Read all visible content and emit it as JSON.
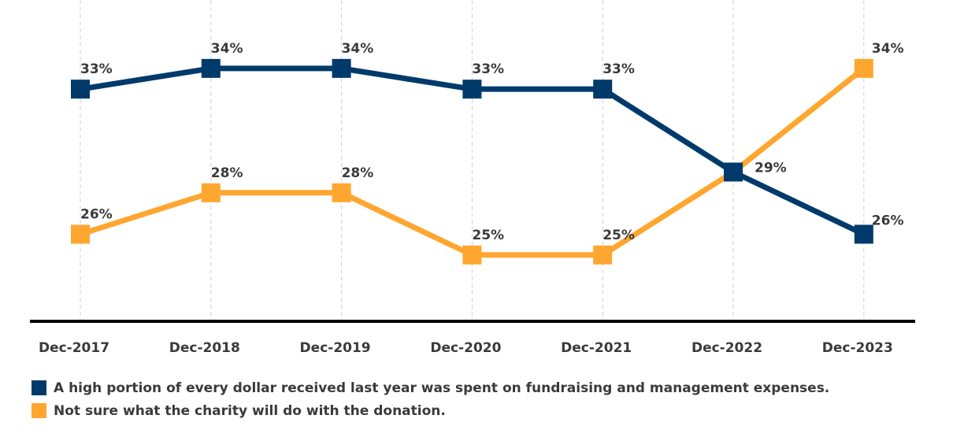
{
  "chart_data": {
    "type": "line",
    "categories": [
      "Dec-2017",
      "Dec-2018",
      "Dec-2019",
      "Dec-2020",
      "Dec-2021",
      "Dec-2022",
      "Dec-2023"
    ],
    "series": [
      {
        "name": "A high portion of every dollar received last year was spent on fundraising and management expenses.",
        "color": "#003a6b",
        "values": [
          33,
          34,
          34,
          33,
          33,
          29,
          26
        ],
        "labels": [
          "33%",
          "34%",
          "34%",
          "33%",
          "33%",
          "",
          "26%"
        ]
      },
      {
        "name": "Not sure what the charity will do with the donation.",
        "color": "#ffa630",
        "values": [
          26,
          28,
          28,
          25,
          25,
          29,
          34
        ],
        "labels": [
          "26%",
          "28%",
          "28%",
          "25%",
          "25%",
          "29%",
          "34%"
        ]
      }
    ],
    "ylim": [
      21.8,
      37.3
    ],
    "unit": "%",
    "grid": "vertical dashed",
    "legend": "bottom-left",
    "marker": "square"
  }
}
